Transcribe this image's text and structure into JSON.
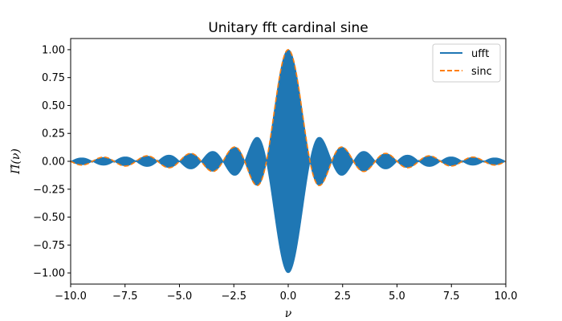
{
  "chart_data": {
    "type": "line",
    "title": "Unitary fft cardinal sine",
    "xlabel": "ν",
    "ylabel": "Π̂(ν)",
    "xlim": [
      -10.0,
      10.0
    ],
    "ylim": [
      -1.1,
      1.1
    ],
    "x_ticks": [
      -10.0,
      -7.5,
      -5.0,
      -2.5,
      0.0,
      2.5,
      5.0,
      7.5,
      10.0
    ],
    "x_tick_labels": [
      "−10.0",
      "−7.5",
      "−5.0",
      "−2.5",
      "0.0",
      "2.5",
      "5.0",
      "7.5",
      "10.0"
    ],
    "y_ticks": [
      -1.0,
      -0.75,
      -0.5,
      -0.25,
      0.0,
      0.25,
      0.5,
      0.75,
      1.0
    ],
    "y_tick_labels": [
      "−1.00",
      "−0.75",
      "−0.50",
      "−0.25",
      "0.00",
      "0.25",
      "0.50",
      "0.75",
      "1.00"
    ],
    "grid": false,
    "legend_position": "upper-right",
    "series": [
      {
        "name": "ufft",
        "style": "solid",
        "color": "#1f77b4",
        "description_of_values": "rapid oscillation filling the envelope ±|sinc(ν)|",
        "envelope_x": [
          -10.0,
          -9.5,
          -9.0,
          -8.5,
          -8.0,
          -7.5,
          -7.0,
          -6.5,
          -6.0,
          -5.5,
          -5.0,
          -4.5,
          -4.0,
          -3.5,
          -3.0,
          -2.5,
          -2.0,
          -1.5,
          -1.0,
          -0.5,
          0.0,
          0.5,
          1.0,
          1.5,
          2.0,
          2.5,
          3.0,
          3.5,
          4.0,
          4.5,
          5.0,
          5.5,
          6.0,
          6.5,
          7.0,
          7.5,
          8.0,
          8.5,
          9.0,
          9.5,
          10.0
        ],
        "envelope_y": [
          0.0,
          0.034,
          0.0,
          0.037,
          0.0,
          0.042,
          0.0,
          0.049,
          0.0,
          0.058,
          0.0,
          0.071,
          0.0,
          0.091,
          0.0,
          0.127,
          0.0,
          0.212,
          0.0,
          0.637,
          1.0,
          0.637,
          0.0,
          0.212,
          0.0,
          0.127,
          0.0,
          0.091,
          0.0,
          0.071,
          0.0,
          0.058,
          0.0,
          0.049,
          0.0,
          0.042,
          0.0,
          0.037,
          0.0,
          0.034,
          0.0
        ]
      },
      {
        "name": "sinc",
        "style": "dashed",
        "color": "#ff7f0e",
        "x": [
          -10.0,
          -9.5,
          -9.0,
          -8.5,
          -8.0,
          -7.5,
          -7.0,
          -6.5,
          -6.0,
          -5.5,
          -5.0,
          -4.5,
          -4.0,
          -3.5,
          -3.0,
          -2.5,
          -2.0,
          -1.5,
          -1.0,
          -0.5,
          0.0,
          0.5,
          1.0,
          1.5,
          2.0,
          2.5,
          3.0,
          3.5,
          4.0,
          4.5,
          5.0,
          5.5,
          6.0,
          6.5,
          7.0,
          7.5,
          8.0,
          8.5,
          9.0,
          9.5,
          10.0
        ],
        "y": [
          0.0,
          0.034,
          0.0,
          -0.037,
          0.0,
          0.042,
          0.0,
          -0.049,
          0.0,
          0.058,
          0.0,
          -0.071,
          0.0,
          0.091,
          0.0,
          0.127,
          0.0,
          -0.212,
          0.0,
          0.637,
          1.0,
          0.637,
          0.0,
          -0.212,
          0.0,
          0.127,
          0.0,
          -0.091,
          0.0,
          0.071,
          0.0,
          -0.058,
          0.0,
          0.049,
          0.0,
          -0.042,
          0.0,
          0.037,
          0.0,
          -0.034,
          0.0
        ]
      }
    ]
  }
}
